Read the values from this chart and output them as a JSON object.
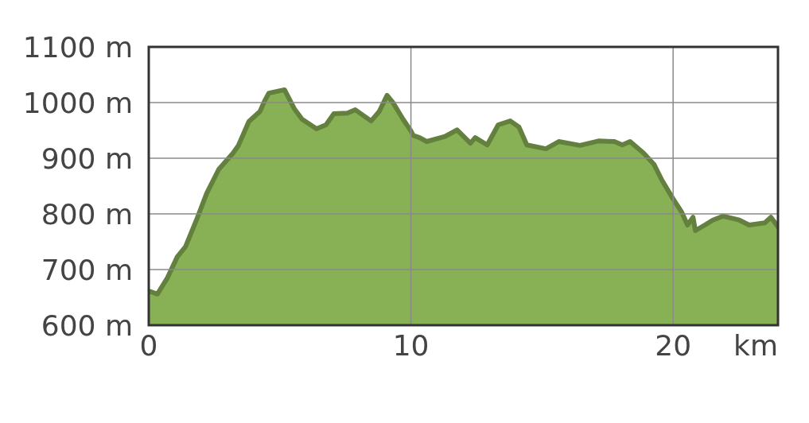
{
  "chart_data": {
    "type": "area",
    "xlabel": "km",
    "x": [
      0,
      0.09,
      0.33,
      0.7,
      1.09,
      1.4,
      1.82,
      2.21,
      2.67,
      3.21,
      3.42,
      3.82,
      4.24,
      4.42,
      4.58,
      5.18,
      5.55,
      5.85,
      6.4,
      6.76,
      7.06,
      7.58,
      7.88,
      8.48,
      8.79,
      9.09,
      9.33,
      9.7,
      10.0,
      10.09,
      10.33,
      10.6,
      11.3,
      11.76,
      12.27,
      12.45,
      12.91,
      13.33,
      13.79,
      14.12,
      14.42,
      15.15,
      15.64,
      16.45,
      17.15,
      17.76,
      18.06,
      18.36,
      18.88,
      19.27,
      19.58,
      20.0,
      20.33,
      20.55,
      20.76,
      20.85,
      21.21,
      21.52,
      21.91,
      22.52,
      22.9,
      23.5,
      23.73,
      24
    ],
    "series": [
      {
        "color": "#88b055",
        "values": [
          661,
          660,
          656,
          684,
          723,
          741,
          789,
          837,
          880,
          909,
          923,
          966,
          984,
          1003,
          1017,
          1023,
          989,
          970,
          953,
          960,
          980,
          981,
          987,
          967,
          984,
          1013,
          999,
          970,
          949,
          941,
          937,
          930,
          939,
          951,
          927,
          937,
          924,
          960,
          967,
          956,
          924,
          917,
          930,
          923,
          931,
          930,
          924,
          930,
          909,
          889,
          860,
          827,
          803,
          780,
          794,
          770,
          780,
          789,
          796,
          789,
          780,
          784,
          794,
          777
        ]
      }
    ],
    "xlim": [
      0,
      24
    ],
    "xticks": [
      0,
      10,
      20
    ],
    "ylim": [
      600,
      1100
    ],
    "yticks": [
      {
        "value": 600,
        "label": "600 m"
      },
      {
        "value": 700,
        "label": "700 m"
      },
      {
        "value": 800,
        "label": "800 m"
      },
      {
        "value": 900,
        "label": "900 m"
      },
      {
        "value": 1000,
        "label": "1000 m"
      },
      {
        "value": 1100,
        "label": "1100 m"
      }
    ],
    "grid": true
  }
}
